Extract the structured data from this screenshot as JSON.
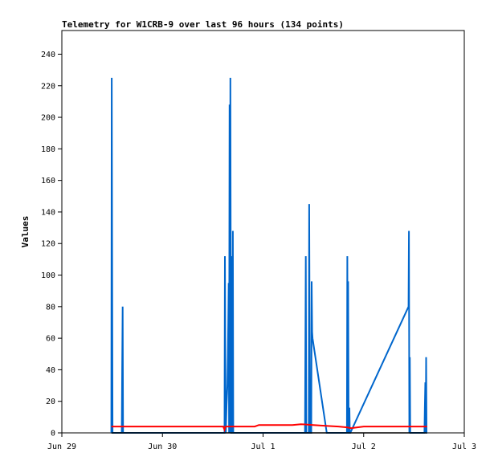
{
  "chart_data": {
    "type": "line",
    "title": "Telemetry for W1CRB-9 over last 96 hours (134 points)",
    "xlabel": "",
    "ylabel": "Values",
    "xlim": [
      0,
      96
    ],
    "ylim": [
      0,
      255
    ],
    "x_ticks": [
      {
        "label": "Jun 29",
        "value": 0
      },
      {
        "label": "Jun 30",
        "value": 24
      },
      {
        "label": "Jul 1",
        "value": 48
      },
      {
        "label": "Jul 2",
        "value": 72
      },
      {
        "label": "Jul 3",
        "value": 96
      }
    ],
    "y_ticks": [
      0,
      20,
      40,
      60,
      80,
      100,
      120,
      140,
      160,
      180,
      200,
      220,
      240
    ],
    "grid": false,
    "series": [
      {
        "color": "#0066cc",
        "x": [
          11.8,
          11.9,
          12.0,
          12.1,
          12.2,
          14.3,
          14.4,
          14.5,
          14.6,
          38.8,
          38.9,
          39.0,
          39.1,
          39.3,
          39.5,
          39.6,
          39.7,
          39.8,
          39.9,
          40.0,
          40.1,
          40.2,
          40.3,
          40.4,
          40.5,
          40.6,
          40.7,
          40.8,
          40.9,
          41.0,
          41.1,
          41.2,
          58.0,
          58.1,
          58.2,
          58.3,
          58.9,
          59.0,
          59.1,
          59.2,
          59.5,
          59.6,
          59.7,
          59.8,
          63.2,
          68.0,
          68.1,
          68.2,
          68.3,
          68.4,
          68.5,
          68.6,
          68.7,
          68.8,
          82.7,
          82.8,
          82.9,
          83.0,
          83.1,
          86.5,
          86.6,
          86.7,
          86.8,
          86.9,
          87.0,
          87.1
        ],
        "y": [
          0,
          225,
          112,
          0,
          0,
          0,
          40,
          80,
          0,
          0,
          112,
          48,
          0,
          18,
          30,
          50,
          70,
          95,
          0,
          208,
          0,
          225,
          88,
          0,
          0,
          112,
          0,
          128,
          0,
          0,
          0,
          0,
          0,
          56,
          112,
          0,
          0,
          145,
          72,
          0,
          0,
          96,
          64,
          60,
          0,
          0,
          112,
          0,
          96,
          0,
          0,
          16,
          0,
          0,
          80,
          128,
          0,
          48,
          0,
          0,
          16,
          32,
          0,
          48,
          0,
          0
        ]
      },
      {
        "color": "#ff0000",
        "x": [
          11.8,
          20,
          30,
          38.5,
          38.8,
          39.0,
          42,
          46,
          47,
          54,
          55,
          57,
          60,
          63,
          66,
          68,
          69,
          72,
          80,
          87.1
        ],
        "y": [
          4,
          4,
          4,
          4,
          2,
          4,
          4,
          4,
          5,
          5,
          5,
          5.5,
          5,
          4.5,
          4,
          3.5,
          3,
          4,
          4,
          4
        ]
      },
      {
        "color": "#000000",
        "x": [
          11.8,
          87.1
        ],
        "y": [
          0,
          0
        ]
      }
    ]
  }
}
